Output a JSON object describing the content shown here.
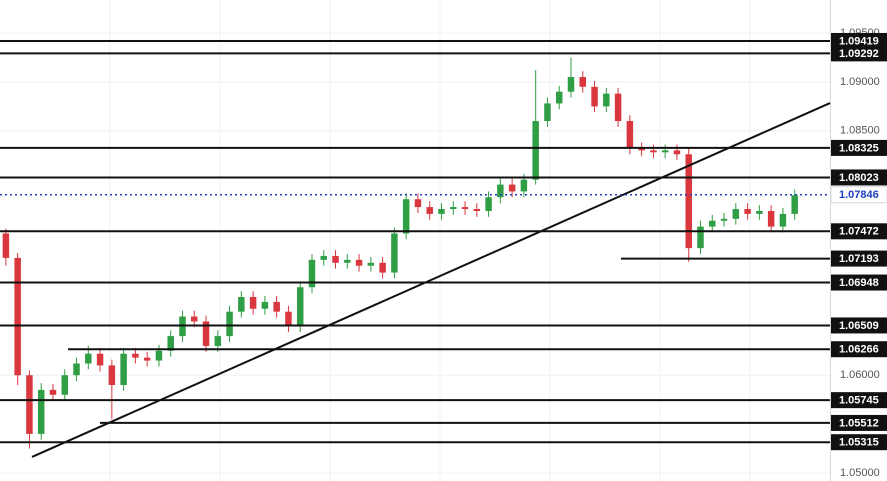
{
  "chart_data": {
    "type": "candlestick",
    "up_color": "#2f9e44",
    "down_color": "#d9363e",
    "ylim": [
      1.04918,
      1.09838
    ],
    "xlim": [
      -0.5,
      70
    ],
    "yticks": [
      {
        "value": 1.05,
        "label": "1.05000"
      },
      {
        "value": 1.06,
        "label": "1.06000"
      },
      {
        "value": 1.085,
        "label": "1.08500"
      },
      {
        "value": 1.09,
        "label": "1.09000"
      },
      {
        "value": 1.095,
        "label": "1.09500"
      }
    ],
    "grid": true,
    "open": [
      1.0745,
      1.072,
      1.06,
      1.054,
      1.0585,
      1.058,
      1.06,
      1.0612,
      1.0622,
      1.061,
      1.059,
      1.0622,
      1.0618,
      1.0615,
      1.0625,
      1.064,
      1.066,
      1.0655,
      1.063,
      1.064,
      1.0665,
      1.068,
      1.0668,
      1.0675,
      1.0665,
      1.065,
      1.069,
      1.0718,
      1.0722,
      1.0715,
      1.0718,
      1.0712,
      1.0715,
      1.0705,
      1.0745,
      1.078,
      1.0772,
      1.0765,
      1.077,
      1.0772,
      1.077,
      1.0768,
      1.0782,
      1.0795,
      1.0788,
      1.08,
      1.086,
      1.0878,
      1.089,
      1.0905,
      1.0895,
      1.0875,
      1.0888,
      1.086,
      1.0832,
      1.083,
      1.0828,
      1.083,
      1.0826,
      1.073,
      1.0752,
      1.0758,
      1.076,
      1.077,
      1.0765,
      1.0768,
      1.0752,
      1.0765
    ],
    "high": [
      1.075,
      1.0725,
      1.0605,
      1.0592,
      1.0591,
      1.0606,
      1.0618,
      1.063,
      1.0628,
      1.0616,
      1.0628,
      1.0628,
      1.0624,
      1.0631,
      1.0646,
      1.0666,
      1.0666,
      1.0661,
      1.0646,
      1.0671,
      1.0686,
      1.0686,
      1.0681,
      1.0681,
      1.0671,
      1.0696,
      1.0724,
      1.0728,
      1.0728,
      1.0724,
      1.0724,
      1.0721,
      1.0721,
      1.0751,
      1.0786,
      1.0786,
      1.0778,
      1.0776,
      1.0778,
      1.0778,
      1.0776,
      1.0788,
      1.0801,
      1.0801,
      1.0806,
      1.0912,
      1.0884,
      1.0896,
      1.0925,
      1.0911,
      1.0901,
      1.0894,
      1.0894,
      1.0866,
      1.0838,
      1.0836,
      1.0836,
      1.0836,
      1.0832,
      1.0758,
      1.0764,
      1.0766,
      1.0776,
      1.0776,
      1.0774,
      1.0774,
      1.0771,
      1.079
    ],
    "low": [
      1.0712,
      1.059,
      1.0525,
      1.0534,
      1.0574,
      1.0574,
      1.0594,
      1.0606,
      1.0604,
      1.0555,
      1.0584,
      1.0612,
      1.0609,
      1.0609,
      1.0619,
      1.0634,
      1.0649,
      1.0624,
      1.0624,
      1.0634,
      1.0659,
      1.0662,
      1.0662,
      1.0659,
      1.0644,
      1.0644,
      1.0684,
      1.0712,
      1.0709,
      1.0709,
      1.0706,
      1.0706,
      1.0699,
      1.0699,
      1.0739,
      1.0766,
      1.0759,
      1.0759,
      1.0764,
      1.0764,
      1.0762,
      1.0762,
      1.0776,
      1.0782,
      1.0782,
      1.0795,
      1.0854,
      1.0872,
      1.0884,
      1.0889,
      1.0869,
      1.0869,
      1.0854,
      1.0826,
      1.0824,
      1.0822,
      1.0822,
      1.082,
      1.0716,
      1.0724,
      1.0746,
      1.0752,
      1.0754,
      1.0759,
      1.0759,
      1.0746,
      1.0746,
      1.0759
    ],
    "close": [
      1.072,
      1.06,
      1.054,
      1.0585,
      1.058,
      1.06,
      1.0612,
      1.0622,
      1.061,
      1.059,
      1.0622,
      1.0618,
      1.0615,
      1.0625,
      1.064,
      1.066,
      1.0655,
      1.063,
      1.064,
      1.0665,
      1.068,
      1.0668,
      1.0675,
      1.0665,
      1.065,
      1.069,
      1.0718,
      1.0722,
      1.0715,
      1.0718,
      1.0712,
      1.0715,
      1.0705,
      1.0745,
      1.078,
      1.0772,
      1.0765,
      1.077,
      1.0772,
      1.077,
      1.0768,
      1.0782,
      1.0795,
      1.0788,
      1.08,
      1.086,
      1.0878,
      1.089,
      1.0905,
      1.0895,
      1.0875,
      1.0888,
      1.086,
      1.0832,
      1.083,
      1.0828,
      1.083,
      1.0826,
      1.073,
      1.0752,
      1.0758,
      1.076,
      1.077,
      1.0765,
      1.0768,
      1.0752,
      1.0765,
      1.0784
    ],
    "levels": [
      {
        "value": 1.09419
      },
      {
        "value": 1.09292
      },
      {
        "value": 1.08325
      },
      {
        "value": 1.08023
      },
      {
        "value": 1.07472
      },
      {
        "value": 1.07193,
        "from": 52.25
      },
      {
        "value": 1.06948
      },
      {
        "value": 1.06509
      },
      {
        "value": 1.06266,
        "from": 5.28
      },
      {
        "value": 1.05745
      },
      {
        "value": 1.05512,
        "from": 7.99
      },
      {
        "value": 1.05315
      }
    ],
    "price_line": {
      "value": 1.07846,
      "color": "#1e3fbf"
    },
    "trendline": {
      "x": [
        2.22,
        70
      ],
      "y": [
        1.05164,
        1.08784
      ]
    }
  }
}
